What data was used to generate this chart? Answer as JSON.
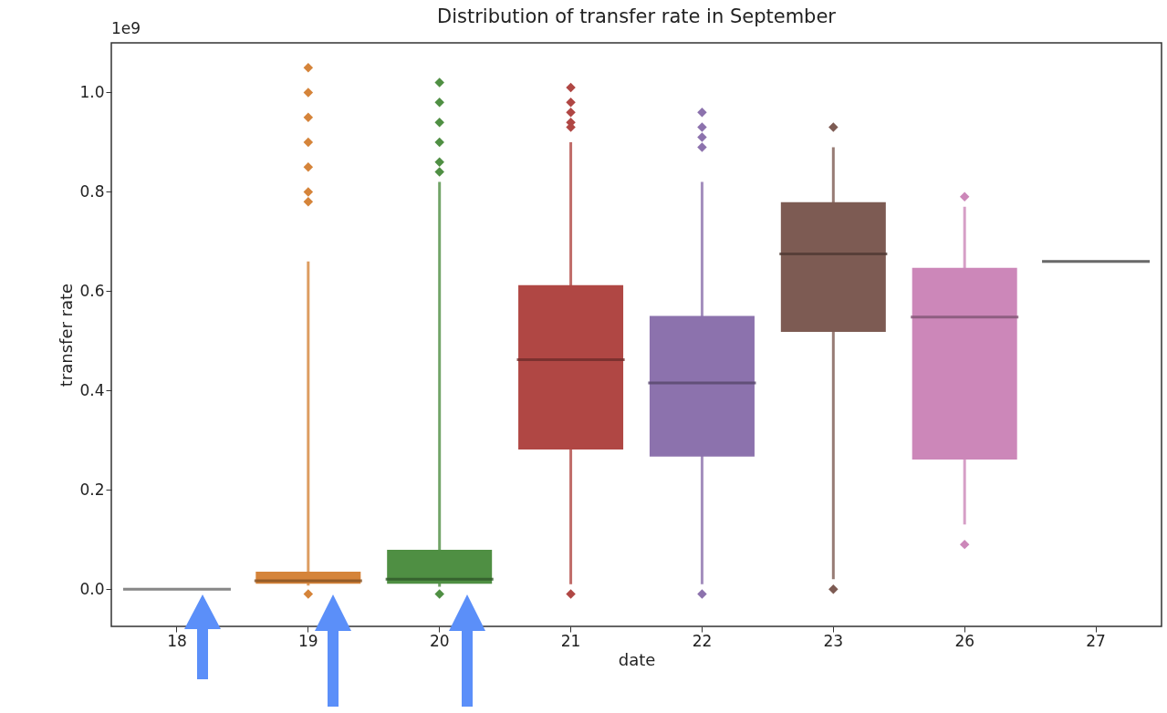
{
  "chart_data": {
    "type": "box",
    "title": "Distribution of transfer rate in September",
    "xlabel": "date",
    "ylabel": "transfer rate",
    "annotations": [
      "1e9"
    ],
    "categories": [
      "18",
      "19",
      "20",
      "21",
      "22",
      "23",
      "26",
      "27"
    ],
    "colors": [
      "#a8a8a8",
      "#d5843a",
      "#4f8f43",
      "#b04744",
      "#8c72ad",
      "#7d5b53",
      "#cc87b9",
      "#6b6b6b"
    ],
    "boxes": [
      {
        "low": 0,
        "q1": 0,
        "median": 0,
        "q3": 0,
        "high": 0
      },
      {
        "low": 0.007,
        "q1": 0.011,
        "median": 0.017,
        "q3": 0.035,
        "high": 0.66,
        "outliers": [
          1.05,
          1.0,
          0.95,
          0.9,
          0.85,
          0.8,
          0.78,
          -0.01
        ]
      },
      {
        "low": 0.005,
        "q1": 0.011,
        "median": 0.02,
        "q3": 0.079,
        "high": 0.82,
        "outliers": [
          1.02,
          0.98,
          0.94,
          0.9,
          0.86,
          0.84,
          -0.01
        ]
      },
      {
        "low": 0.01,
        "q1": 0.281,
        "median": 0.462,
        "q3": 0.612,
        "high": 0.9,
        "outliers": [
          1.01,
          0.98,
          0.96,
          0.94,
          0.93,
          -0.01
        ]
      },
      {
        "low": 0.01,
        "q1": 0.267,
        "median": 0.415,
        "q3": 0.55,
        "high": 0.82,
        "outliers": [
          0.96,
          0.93,
          0.91,
          0.89,
          -0.01
        ]
      },
      {
        "low": 0.02,
        "q1": 0.518,
        "median": 0.675,
        "q3": 0.779,
        "high": 0.89,
        "outliers": [
          0.93,
          0.0
        ]
      },
      {
        "low": 0.13,
        "q1": 0.261,
        "median": 0.548,
        "q3": 0.647,
        "high": 0.77,
        "outliers": [
          0.79,
          0.09
        ]
      },
      {
        "low": 0.66,
        "q1": 0.66,
        "median": 0.66,
        "q3": 0.66,
        "high": 0.66
      }
    ],
    "ylim": [
      -0.075,
      1.1
    ],
    "yticks": [
      {
        "value": 0,
        "label": "0.0"
      },
      {
        "value": 0.2,
        "label": "0.2"
      },
      {
        "value": 0.4,
        "label": "0.4"
      },
      {
        "value": 0.6,
        "label": "0.6"
      },
      {
        "value": 0.8,
        "label": "0.8"
      },
      {
        "value": 1,
        "label": "1.0"
      }
    ],
    "grid": false
  }
}
